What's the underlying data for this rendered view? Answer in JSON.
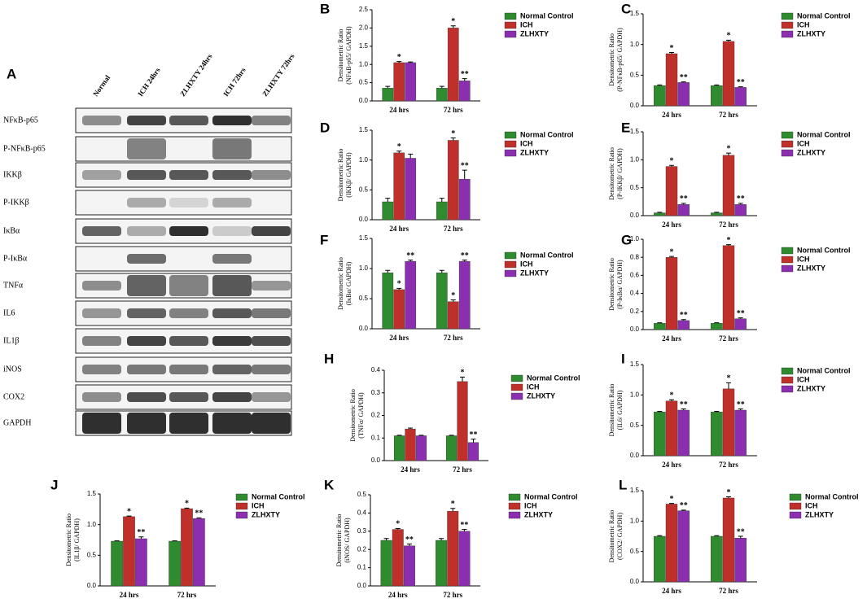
{
  "blot": {
    "label": "A",
    "lanes": [
      "Normal",
      "ICH 24hrs",
      "ZLHXTY 24hrs",
      "ICH 72hrs",
      "ZLHXTY 72hrs"
    ],
    "rows": [
      "NFκB-p65",
      "P-NFκB-p65",
      "IKKβ",
      "P-IKKβ",
      "IκBα",
      "P-IκBα",
      "TNFα",
      "IL6",
      "IL1β",
      "iNOS",
      "COX2",
      "GAPDH"
    ]
  },
  "chart_data": [
    {
      "type": "bar",
      "label": "B",
      "ylabel": [
        "Densitometric Ratio",
        "(NFκB-p65/ GAPDH)"
      ],
      "categories": [
        "24 hrs",
        "72 hrs"
      ],
      "ylim": [
        0,
        2.5
      ],
      "yticks": [
        {
          "value": 0,
          "label": "0.0"
        },
        0.5,
        {
          "value": 1,
          "label": "1.0"
        },
        1.5,
        {
          "value": 2,
          "label": "2.0"
        },
        2.5
      ],
      "series": [
        {
          "name": "Normal Control",
          "color": "#2e8b2e",
          "values": [
            0.35,
            0.35
          ],
          "errors": [
            0.05,
            0.05
          ],
          "annotations": [
            null,
            null
          ]
        },
        {
          "name": "ICH",
          "color": "#c0302a",
          "values": [
            1.05,
            2.0
          ],
          "errors": [
            0.03,
            0.06
          ],
          "annotations": [
            "*",
            "*"
          ]
        },
        {
          "name": "ZLHXTY",
          "color": "#8b2fb0",
          "values": [
            1.05,
            0.55
          ],
          "errors": [
            0.02,
            0.06
          ],
          "annotations": [
            null,
            "**"
          ]
        }
      ]
    },
    {
      "type": "bar",
      "label": "C",
      "ylabel": [
        "Densitometric Ratio",
        "(P-NFκB-p65/ GAPDH)"
      ],
      "categories": [
        "24 hrs",
        "72 hrs"
      ],
      "ylim": [
        0,
        1.5
      ],
      "yticks": [
        {
          "value": 0,
          "label": "0.0"
        },
        0.5,
        {
          "value": 1,
          "label": "1.0"
        },
        1.5
      ],
      "series": [
        {
          "name": "Normal Control",
          "color": "#2e8b2e",
          "values": [
            0.33,
            0.33
          ],
          "errors": [
            0.01,
            0.01
          ],
          "annotations": [
            null,
            null
          ]
        },
        {
          "name": "ICH",
          "color": "#c0302a",
          "values": [
            0.85,
            1.05
          ],
          "errors": [
            0.02,
            0.02
          ],
          "annotations": [
            "*",
            "*"
          ]
        },
        {
          "name": "ZLHXTY",
          "color": "#8b2fb0",
          "values": [
            0.38,
            0.3
          ],
          "errors": [
            0.01,
            0.01
          ],
          "annotations": [
            "**",
            "**"
          ]
        }
      ]
    },
    {
      "type": "bar",
      "label": "D",
      "ylabel": [
        "Densitometric Ratio",
        "(IKKβ/ GAPDH)"
      ],
      "categories": [
        "24 hrs",
        "72 hrs"
      ],
      "ylim": [
        0,
        1.5
      ],
      "yticks": [
        {
          "value": 0,
          "label": "0.0"
        },
        0.5,
        {
          "value": 1,
          "label": "1.0"
        },
        1.5
      ],
      "series": [
        {
          "name": "Normal Control",
          "color": "#2e8b2e",
          "values": [
            0.3,
            0.3
          ],
          "errors": [
            0.06,
            0.06
          ],
          "annotations": [
            null,
            null
          ]
        },
        {
          "name": "ICH",
          "color": "#c0302a",
          "values": [
            1.12,
            1.33
          ],
          "errors": [
            0.03,
            0.04
          ],
          "annotations": [
            "*",
            "*"
          ]
        },
        {
          "name": "ZLHXTY",
          "color": "#8b2fb0",
          "values": [
            1.03,
            0.68
          ],
          "errors": [
            0.07,
            0.15
          ],
          "annotations": [
            null,
            "**"
          ]
        }
      ]
    },
    {
      "type": "bar",
      "label": "E",
      "ylabel": [
        "Densitometric Ratio",
        "(P-IKKβ/ GAPDH)"
      ],
      "categories": [
        "24 hrs",
        "72 hrs"
      ],
      "ylim": [
        0,
        1.5
      ],
      "yticks": [
        {
          "value": 0,
          "label": "0.0"
        },
        0.5,
        {
          "value": 1,
          "label": "1.0"
        },
        1.5
      ],
      "series": [
        {
          "name": "Normal Control",
          "color": "#2e8b2e",
          "values": [
            0.05,
            0.05
          ],
          "errors": [
            0.01,
            0.01
          ],
          "annotations": [
            null,
            null
          ]
        },
        {
          "name": "ICH",
          "color": "#c0302a",
          "values": [
            0.88,
            1.08
          ],
          "errors": [
            0.02,
            0.04
          ],
          "annotations": [
            "*",
            "*"
          ]
        },
        {
          "name": "ZLHXTY",
          "color": "#8b2fb0",
          "values": [
            0.2,
            0.2
          ],
          "errors": [
            0.02,
            0.02
          ],
          "annotations": [
            "**",
            "**"
          ]
        }
      ]
    },
    {
      "type": "bar",
      "label": "F",
      "ylabel": [
        "Densitometric Ratio",
        "(IκBα/ GAPDH)"
      ],
      "categories": [
        "24 hrs",
        "72 hrs"
      ],
      "ylim": [
        0,
        1.5
      ],
      "yticks": [
        {
          "value": 0,
          "label": "0.0"
        },
        0.5,
        {
          "value": 1,
          "label": "1.0"
        },
        1.5
      ],
      "series": [
        {
          "name": "Normal Control",
          "color": "#2e8b2e",
          "values": [
            0.93,
            0.93
          ],
          "errors": [
            0.04,
            0.04
          ],
          "annotations": [
            null,
            null
          ]
        },
        {
          "name": "ICH",
          "color": "#c0302a",
          "values": [
            0.65,
            0.45
          ],
          "errors": [
            0.02,
            0.03
          ],
          "annotations": [
            "*",
            "*"
          ]
        },
        {
          "name": "ZLHXTY",
          "color": "#8b2fb0",
          "values": [
            1.12,
            1.12
          ],
          "errors": [
            0.02,
            0.02
          ],
          "annotations": [
            "**",
            "**"
          ]
        }
      ]
    },
    {
      "type": "bar",
      "label": "G",
      "ylabel": [
        "Densitometric Ratio",
        "(P-IκBα/ GAPDH)"
      ],
      "categories": [
        "24 hrs",
        "72 hrs"
      ],
      "ylim": [
        0,
        1
      ],
      "yticks": [
        {
          "value": 0,
          "label": "0.0"
        },
        0.2,
        0.4,
        0.6,
        0.8,
        {
          "value": 1,
          "label": "1.0"
        }
      ],
      "series": [
        {
          "name": "Normal Control",
          "color": "#2e8b2e",
          "values": [
            0.07,
            0.07
          ],
          "errors": [
            0.005,
            0.005
          ],
          "annotations": [
            null,
            null
          ]
        },
        {
          "name": "ICH",
          "color": "#c0302a",
          "values": [
            0.8,
            0.93
          ],
          "errors": [
            0.01,
            0.01
          ],
          "annotations": [
            "*",
            "*"
          ]
        },
        {
          "name": "ZLHXTY",
          "color": "#8b2fb0",
          "values": [
            0.1,
            0.12
          ],
          "errors": [
            0.01,
            0.01
          ],
          "annotations": [
            "**",
            "**"
          ]
        }
      ]
    },
    {
      "type": "bar",
      "label": "H",
      "ylabel": [
        "Densitometric Ratio",
        "(TNFα/ GAPDH)"
      ],
      "categories": [
        "24 hrs",
        "72 hrs"
      ],
      "ylim": [
        0,
        0.4
      ],
      "yticks": [
        {
          "value": 0,
          "label": "0.0"
        },
        0.1,
        0.2,
        0.3,
        0.4
      ],
      "series": [
        {
          "name": "Normal Control",
          "color": "#2e8b2e",
          "values": [
            0.11,
            0.11
          ],
          "errors": [
            0.002,
            0.002
          ],
          "annotations": [
            null,
            null
          ]
        },
        {
          "name": "ICH",
          "color": "#c0302a",
          "values": [
            0.14,
            0.35
          ],
          "errors": [
            0.004,
            0.02
          ],
          "annotations": [
            null,
            "*"
          ]
        },
        {
          "name": "ZLHXTY",
          "color": "#8b2fb0",
          "values": [
            0.11,
            0.08
          ],
          "errors": [
            0.002,
            0.015
          ],
          "annotations": [
            null,
            "**"
          ]
        }
      ]
    },
    {
      "type": "bar",
      "label": "I",
      "ylabel": [
        "Densitometric Ratio",
        "(IL6/ GAPDH)"
      ],
      "categories": [
        "24 hrs",
        "72 hrs"
      ],
      "ylim": [
        0,
        1.5
      ],
      "yticks": [
        {
          "value": 0,
          "label": "0.0"
        },
        0.5,
        {
          "value": 1,
          "label": "1.0"
        },
        1.5
      ],
      "series": [
        {
          "name": "Normal Control",
          "color": "#2e8b2e",
          "values": [
            0.72,
            0.72
          ],
          "errors": [
            0.01,
            0.01
          ],
          "annotations": [
            null,
            null
          ]
        },
        {
          "name": "ICH",
          "color": "#c0302a",
          "values": [
            0.9,
            1.1
          ],
          "errors": [
            0.02,
            0.1
          ],
          "annotations": [
            "*",
            "*"
          ]
        },
        {
          "name": "ZLHXTY",
          "color": "#8b2fb0",
          "values": [
            0.75,
            0.75
          ],
          "errors": [
            0.02,
            0.02
          ],
          "annotations": [
            "**",
            "**"
          ]
        }
      ]
    },
    {
      "type": "bar",
      "label": "J",
      "ylabel": [
        "Densitometric Ratio",
        "(IL1β/ GAPDH)"
      ],
      "categories": [
        "24 hrs",
        "72 hrs"
      ],
      "ylim": [
        0,
        1.5
      ],
      "yticks": [
        {
          "value": 0,
          "label": "0.0"
        },
        0.5,
        {
          "value": 1,
          "label": "1.0"
        },
        1.5
      ],
      "series": [
        {
          "name": "Normal Control",
          "color": "#2e8b2e",
          "values": [
            0.73,
            0.73
          ],
          "errors": [
            0.005,
            0.005
          ],
          "annotations": [
            null,
            null
          ]
        },
        {
          "name": "ICH",
          "color": "#c0302a",
          "values": [
            1.13,
            1.26
          ],
          "errors": [
            0.01,
            0.01
          ],
          "annotations": [
            "*",
            "*"
          ]
        },
        {
          "name": "ZLHXTY",
          "color": "#8b2fb0",
          "values": [
            0.77,
            1.1
          ],
          "errors": [
            0.03,
            0.01
          ],
          "annotations": [
            "**",
            "**"
          ]
        }
      ]
    },
    {
      "type": "bar",
      "label": "K",
      "ylabel": [
        "Densitometric Ratio",
        "(iNOS/ GAPDH)"
      ],
      "categories": [
        "24 hrs",
        "72 hrs"
      ],
      "ylim": [
        0,
        0.5
      ],
      "yticks": [
        {
          "value": 0,
          "label": "0.0"
        },
        0.1,
        0.2,
        0.3,
        0.4,
        0.5
      ],
      "series": [
        {
          "name": "Normal Control",
          "color": "#2e8b2e",
          "values": [
            0.25,
            0.25
          ],
          "errors": [
            0.01,
            0.01
          ],
          "annotations": [
            null,
            null
          ]
        },
        {
          "name": "ICH",
          "color": "#c0302a",
          "values": [
            0.31,
            0.41
          ],
          "errors": [
            0.005,
            0.015
          ],
          "annotations": [
            "*",
            "*"
          ]
        },
        {
          "name": "ZLHXTY",
          "color": "#8b2fb0",
          "values": [
            0.22,
            0.3
          ],
          "errors": [
            0.01,
            0.01
          ],
          "annotations": [
            "**",
            "**"
          ]
        }
      ]
    },
    {
      "type": "bar",
      "label": "L",
      "ylabel": [
        "Densitometric Ratio",
        "(COX2/ GAPDH)"
      ],
      "categories": [
        "24 hrs",
        "72 hrs"
      ],
      "ylim": [
        0,
        1.5
      ],
      "yticks": [
        {
          "value": 0,
          "label": "0.0"
        },
        0.5,
        {
          "value": 1,
          "label": "1.0"
        },
        1.5
      ],
      "series": [
        {
          "name": "Normal Control",
          "color": "#2e8b2e",
          "values": [
            0.75,
            0.75
          ],
          "errors": [
            0.01,
            0.01
          ],
          "annotations": [
            null,
            null
          ]
        },
        {
          "name": "ICH",
          "color": "#c0302a",
          "values": [
            1.28,
            1.38
          ],
          "errors": [
            0.01,
            0.02
          ],
          "annotations": [
            "*",
            "*"
          ]
        },
        {
          "name": "ZLHXTY",
          "color": "#8b2fb0",
          "values": [
            1.17,
            0.72
          ],
          "errors": [
            0.01,
            0.03
          ],
          "annotations": [
            "**",
            "**"
          ]
        }
      ]
    }
  ]
}
